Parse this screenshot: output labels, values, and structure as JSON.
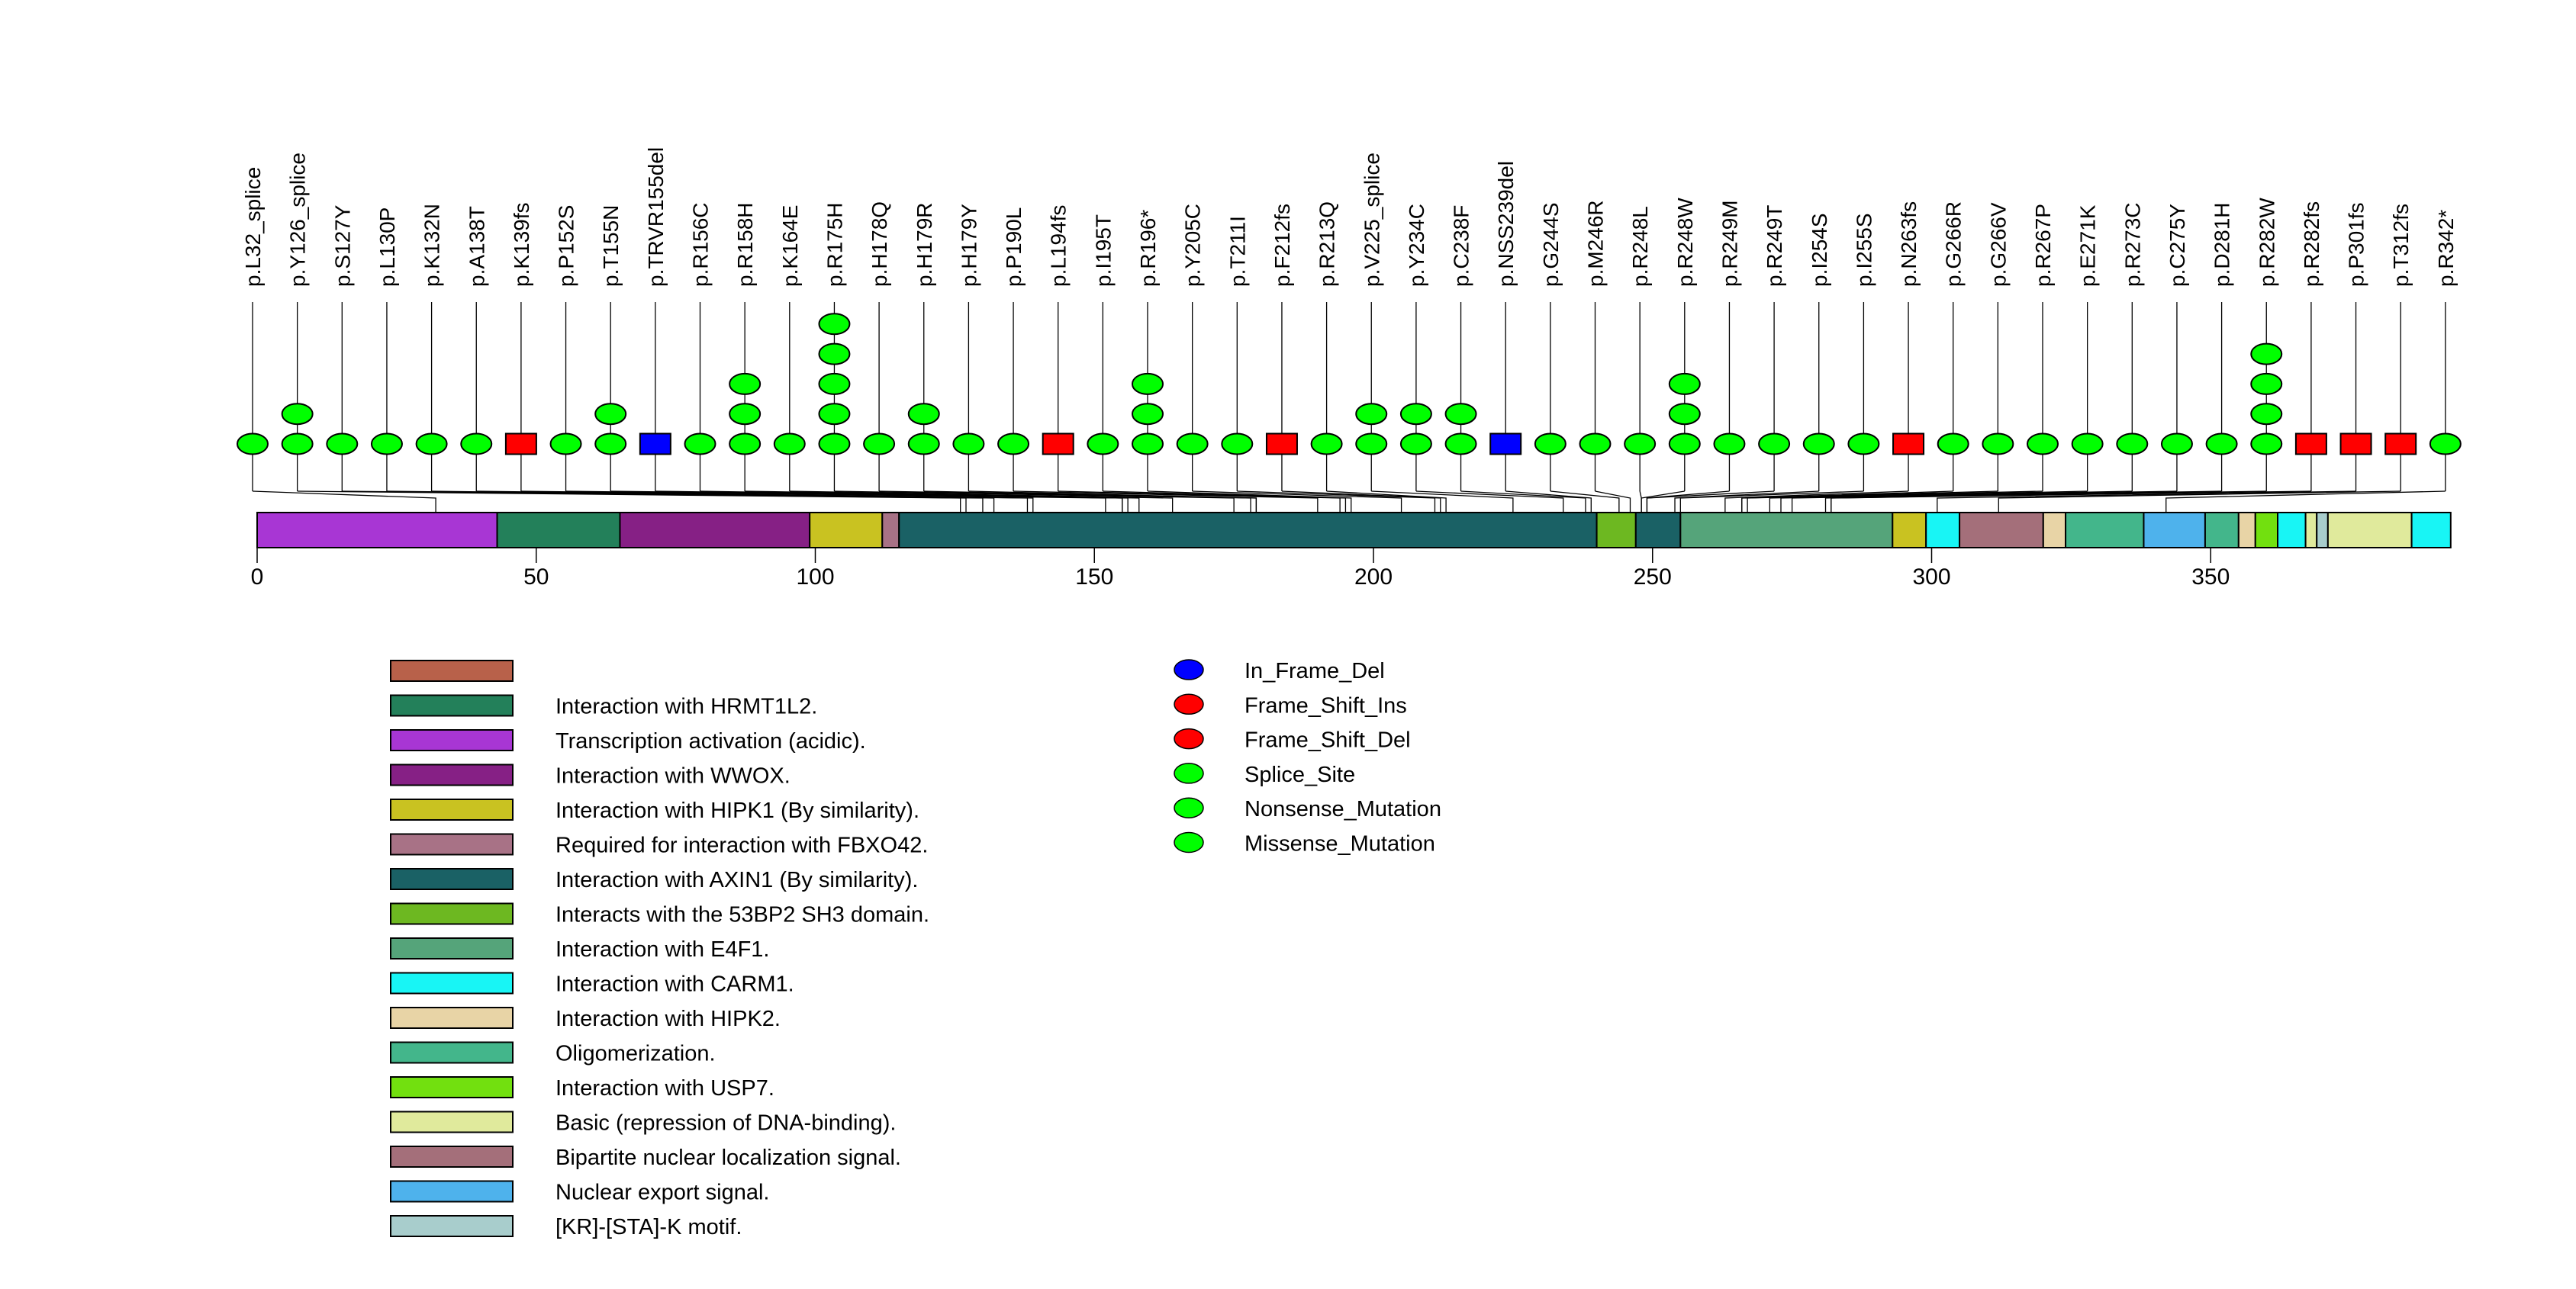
{
  "chart_data": {
    "type": "lollipop",
    "title": "",
    "xlabel": "",
    "ylabel": "",
    "protein_length": 393,
    "xlim": [
      0,
      393
    ],
    "x_ticks": [
      0,
      50,
      100,
      150,
      200,
      250,
      300,
      350
    ],
    "x_tick_labels": [
      "0",
      "50",
      "100",
      "150",
      "200",
      "250",
      "300",
      "350"
    ],
    "mutation_colors": {
      "In_Frame_Del": "#0000ff",
      "Frame_Shift_Ins": "#ff0000",
      "Frame_Shift_Del": "#ff0000",
      "Splice_Site": "#00ff00",
      "Nonsense_Mutation": "#00ff00",
      "Missense_Mutation": "#00ff00"
    },
    "mutations": [
      {
        "label": "p.L32_splice",
        "position": 32,
        "count": 1,
        "shape": "ellipse",
        "color": "#00ff00"
      },
      {
        "label": "p.Y126_splice",
        "position": 126,
        "count": 2,
        "shape": "ellipse",
        "color": "#00ff00"
      },
      {
        "label": "p.S127Y",
        "position": 127,
        "count": 1,
        "shape": "ellipse",
        "color": "#00ff00"
      },
      {
        "label": "p.L130P",
        "position": 130,
        "count": 1,
        "shape": "ellipse",
        "color": "#00ff00"
      },
      {
        "label": "p.K132N",
        "position": 132,
        "count": 1,
        "shape": "ellipse",
        "color": "#00ff00"
      },
      {
        "label": "p.A138T",
        "position": 138,
        "count": 1,
        "shape": "ellipse",
        "color": "#00ff00"
      },
      {
        "label": "p.K139fs",
        "position": 139,
        "count": 1,
        "shape": "rect",
        "color": "#ff0000"
      },
      {
        "label": "p.P152S",
        "position": 152,
        "count": 1,
        "shape": "ellipse",
        "color": "#00ff00"
      },
      {
        "label": "p.T155N",
        "position": 155,
        "count": 2,
        "shape": "ellipse",
        "color": "#00ff00"
      },
      {
        "label": "p.TRVR155del",
        "position": 155,
        "count": 1,
        "shape": "rect",
        "color": "#0000ff"
      },
      {
        "label": "p.R156C",
        "position": 156,
        "count": 1,
        "shape": "ellipse",
        "color": "#00ff00"
      },
      {
        "label": "p.R158H",
        "position": 158,
        "count": 3,
        "shape": "ellipse",
        "color": "#00ff00"
      },
      {
        "label": "p.K164E",
        "position": 164,
        "count": 1,
        "shape": "ellipse",
        "color": "#00ff00"
      },
      {
        "label": "p.R175H",
        "position": 175,
        "count": 5,
        "shape": "ellipse",
        "color": "#00ff00"
      },
      {
        "label": "p.H178Q",
        "position": 178,
        "count": 1,
        "shape": "ellipse",
        "color": "#00ff00"
      },
      {
        "label": "p.H179R",
        "position": 179,
        "count": 2,
        "shape": "ellipse",
        "color": "#00ff00"
      },
      {
        "label": "p.H179Y",
        "position": 179,
        "count": 1,
        "shape": "ellipse",
        "color": "#00ff00"
      },
      {
        "label": "p.P190L",
        "position": 190,
        "count": 1,
        "shape": "ellipse",
        "color": "#00ff00"
      },
      {
        "label": "p.L194fs",
        "position": 194,
        "count": 1,
        "shape": "rect",
        "color": "#ff0000"
      },
      {
        "label": "p.I195T",
        "position": 195,
        "count": 1,
        "shape": "ellipse",
        "color": "#00ff00"
      },
      {
        "label": "p.R196*",
        "position": 196,
        "count": 3,
        "shape": "ellipse",
        "color": "#00ff00"
      },
      {
        "label": "p.Y205C",
        "position": 205,
        "count": 1,
        "shape": "ellipse",
        "color": "#00ff00"
      },
      {
        "label": "p.T211I",
        "position": 211,
        "count": 1,
        "shape": "ellipse",
        "color": "#00ff00"
      },
      {
        "label": "p.F212fs",
        "position": 212,
        "count": 1,
        "shape": "rect",
        "color": "#ff0000"
      },
      {
        "label": "p.R213Q",
        "position": 213,
        "count": 1,
        "shape": "ellipse",
        "color": "#00ff00"
      },
      {
        "label": "p.V225_splice",
        "position": 225,
        "count": 2,
        "shape": "ellipse",
        "color": "#00ff00"
      },
      {
        "label": "p.Y234C",
        "position": 234,
        "count": 2,
        "shape": "ellipse",
        "color": "#00ff00"
      },
      {
        "label": "p.C238F",
        "position": 238,
        "count": 2,
        "shape": "ellipse",
        "color": "#00ff00"
      },
      {
        "label": "p.NSS239del",
        "position": 239,
        "count": 1,
        "shape": "rect",
        "color": "#0000ff"
      },
      {
        "label": "p.G244S",
        "position": 244,
        "count": 1,
        "shape": "ellipse",
        "color": "#00ff00"
      },
      {
        "label": "p.M246R",
        "position": 246,
        "count": 1,
        "shape": "ellipse",
        "color": "#00ff00"
      },
      {
        "label": "p.R248L",
        "position": 248,
        "count": 1,
        "shape": "ellipse",
        "color": "#00ff00"
      },
      {
        "label": "p.R248W",
        "position": 248,
        "count": 3,
        "shape": "ellipse",
        "color": "#00ff00"
      },
      {
        "label": "p.R249M",
        "position": 249,
        "count": 1,
        "shape": "ellipse",
        "color": "#00ff00"
      },
      {
        "label": "p.R249T",
        "position": 249,
        "count": 1,
        "shape": "ellipse",
        "color": "#00ff00"
      },
      {
        "label": "p.I254S",
        "position": 254,
        "count": 1,
        "shape": "ellipse",
        "color": "#00ff00"
      },
      {
        "label": "p.I255S",
        "position": 255,
        "count": 1,
        "shape": "ellipse",
        "color": "#00ff00"
      },
      {
        "label": "p.N263fs",
        "position": 263,
        "count": 1,
        "shape": "rect",
        "color": "#ff0000"
      },
      {
        "label": "p.G266R",
        "position": 266,
        "count": 1,
        "shape": "ellipse",
        "color": "#00ff00"
      },
      {
        "label": "p.G266V",
        "position": 266,
        "count": 1,
        "shape": "ellipse",
        "color": "#00ff00"
      },
      {
        "label": "p.R267P",
        "position": 267,
        "count": 1,
        "shape": "ellipse",
        "color": "#00ff00"
      },
      {
        "label": "p.E271K",
        "position": 271,
        "count": 1,
        "shape": "ellipse",
        "color": "#00ff00"
      },
      {
        "label": "p.R273C",
        "position": 273,
        "count": 1,
        "shape": "ellipse",
        "color": "#00ff00"
      },
      {
        "label": "p.C275Y",
        "position": 275,
        "count": 1,
        "shape": "ellipse",
        "color": "#00ff00"
      },
      {
        "label": "p.D281H",
        "position": 281,
        "count": 1,
        "shape": "ellipse",
        "color": "#00ff00"
      },
      {
        "label": "p.R282W",
        "position": 282,
        "count": 4,
        "shape": "ellipse",
        "color": "#00ff00"
      },
      {
        "label": "p.R282fs",
        "position": 282,
        "count": 1,
        "shape": "rect",
        "color": "#ff0000"
      },
      {
        "label": "p.P301fs",
        "position": 301,
        "count": 1,
        "shape": "rect",
        "color": "#ff0000"
      },
      {
        "label": "p.T312fs",
        "position": 312,
        "count": 1,
        "shape": "rect",
        "color": "#ff0000"
      },
      {
        "label": "p.R342*",
        "position": 342,
        "count": 1,
        "shape": "ellipse",
        "color": "#00ff00"
      }
    ],
    "domains": [
      {
        "name": "Transcription activation (acidic).",
        "start": 0,
        "end": 43,
        "color": "#a836d4"
      },
      {
        "name": "Interaction with HRMT1L2.",
        "start": 43,
        "end": 65,
        "color": "#23805a"
      },
      {
        "name": "Interaction with WWOX.",
        "start": 65,
        "end": 99,
        "color": "#862085"
      },
      {
        "name": "Interaction with HIPK1 (By similarity).",
        "start": 99,
        "end": 112,
        "color": "#c9c221"
      },
      {
        "name": "Required for interaction with FBXO42.",
        "start": 112,
        "end": 115,
        "color": "#a87286"
      },
      {
        "name": "Interaction with AXIN1 (By similarity).",
        "start": 115,
        "end": 240,
        "color": "#1a6165"
      },
      {
        "name": "Interacts with the 53BP2 SH3 domain.",
        "start": 240,
        "end": 247,
        "color": "#6db821"
      },
      {
        "name": "Interaction with AXIN1 (By similarity).",
        "start": 247,
        "end": 255,
        "color": "#1a6165"
      },
      {
        "name": "Interaction with E4F1.",
        "start": 255,
        "end": 293,
        "color": "#55a47a"
      },
      {
        "name": "Interaction with HIPK1 (By similarity).",
        "start": 293,
        "end": 299,
        "color": "#c9c221"
      },
      {
        "name": "Interaction with CARM1.",
        "start": 299,
        "end": 305,
        "color": "#18f5f5"
      },
      {
        "name": "Bipartite nuclear localization signal.",
        "start": 305,
        "end": 320,
        "color": "#a46f7a"
      },
      {
        "name": "Interaction with HIPK2.",
        "start": 320,
        "end": 324,
        "color": "#e8d4a6"
      },
      {
        "name": "Oligomerization.",
        "start": 324,
        "end": 338,
        "color": "#43b68b"
      },
      {
        "name": "Nuclear export signal.",
        "start": 338,
        "end": 349,
        "color": "#4eb2ec"
      },
      {
        "name": "Oligomerization.",
        "start": 349,
        "end": 355,
        "color": "#43b68b"
      },
      {
        "name": "Interaction with HIPK2.",
        "start": 355,
        "end": 358,
        "color": "#e8d4a6"
      },
      {
        "name": "Interaction with USP7.",
        "start": 358,
        "end": 362,
        "color": "#72e00f"
      },
      {
        "name": "Interaction with CARM1.",
        "start": 362,
        "end": 367,
        "color": "#18f5f5"
      },
      {
        "name": "Basic (repression of DNA-binding).",
        "start": 367,
        "end": 369,
        "color": "#e0ea9c"
      },
      {
        "name": "[KR]-[STA]-K motif.",
        "start": 369,
        "end": 371,
        "color": "#a8cdcc"
      },
      {
        "name": "Basic (repression of DNA-binding).",
        "start": 371,
        "end": 386,
        "color": "#e0ea9c"
      },
      {
        "name": "Interaction with CARM1.",
        "start": 386,
        "end": 393,
        "color": "#18f5f5"
      }
    ],
    "domain_legend": [
      {
        "label": "",
        "color": "#b8614a"
      },
      {
        "label": "Interaction with HRMT1L2.",
        "color": "#23805a"
      },
      {
        "label": "Transcription activation (acidic).",
        "color": "#a836d4"
      },
      {
        "label": "Interaction with WWOX.",
        "color": "#862085"
      },
      {
        "label": "Interaction with HIPK1 (By similarity).",
        "color": "#c9c221"
      },
      {
        "label": "Required for interaction with FBXO42.",
        "color": "#a87286"
      },
      {
        "label": "Interaction with AXIN1 (By similarity).",
        "color": "#1a6165"
      },
      {
        "label": "Interacts with the 53BP2 SH3 domain.",
        "color": "#6db821"
      },
      {
        "label": "Interaction with E4F1.",
        "color": "#55a47a"
      },
      {
        "label": "Interaction with CARM1.",
        "color": "#18f5f5"
      },
      {
        "label": "Interaction with HIPK2.",
        "color": "#e8d4a6"
      },
      {
        "label": "Oligomerization.",
        "color": "#43b68b"
      },
      {
        "label": "Interaction with USP7.",
        "color": "#72e00f"
      },
      {
        "label": "Basic (repression of DNA-binding).",
        "color": "#e0ea9c"
      },
      {
        "label": "Bipartite nuclear localization signal.",
        "color": "#a46f7a"
      },
      {
        "label": "Nuclear export signal.",
        "color": "#4eb2ec"
      },
      {
        "label": "[KR]-[STA]-K motif.",
        "color": "#a8cdcc"
      }
    ],
    "mutation_legend": [
      {
        "label": "In_Frame_Del",
        "color": "#0000ff"
      },
      {
        "label": "Frame_Shift_Ins",
        "color": "#ff0000"
      },
      {
        "label": "Frame_Shift_Del",
        "color": "#ff0000"
      },
      {
        "label": "Splice_Site",
        "color": "#00ff00"
      },
      {
        "label": "Nonsense_Mutation",
        "color": "#00ff00"
      },
      {
        "label": "Missense_Mutation",
        "color": "#00ff00"
      }
    ],
    "grid": false
  }
}
